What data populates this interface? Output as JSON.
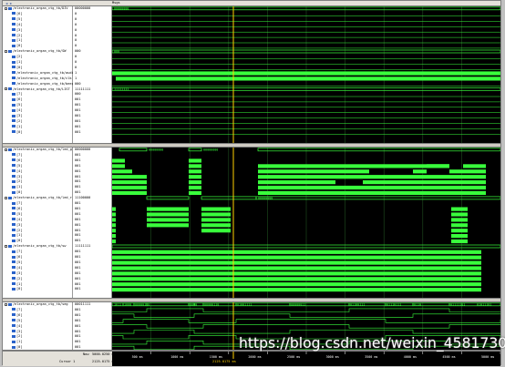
{
  "toolbar": {
    "arrows": "◄ ►",
    "msgs_header": "Msgs"
  },
  "colors": {
    "wave": "#39ff3c",
    "grid": "#1f4f1f",
    "cursor": "#ffd000",
    "background": "#000000"
  },
  "panel1": {
    "signals": [
      {
        "name": "/electronic_organ_ctg_tb/DIV",
        "value": "00000000",
        "group": true
      },
      {
        "name": "[6]",
        "value": "0"
      },
      {
        "name": "[5]",
        "value": "0"
      },
      {
        "name": "[4]",
        "value": "0"
      },
      {
        "name": "[3]",
        "value": "0"
      },
      {
        "name": "[2]",
        "value": "0"
      },
      {
        "name": "[1]",
        "value": "0"
      },
      {
        "name": "[0]",
        "value": "0"
      },
      {
        "name": "/electronic_organ_ctg_tb/SW",
        "value": "000",
        "group": true
      },
      {
        "name": "[2]",
        "value": "0"
      },
      {
        "name": "[1]",
        "value": "0"
      },
      {
        "name": "[0]",
        "value": "0"
      },
      {
        "name": "/electronic_organ_ctg_tb/audio_sw",
        "value": "1"
      },
      {
        "name": "/electronic_organ_ctg_tb/clk",
        "value": "1"
      },
      {
        "name": "/electronic_organ_ctg_tb/beep",
        "value": "000"
      },
      {
        "name": "/electronic_organ_ctg_tb/LIST",
        "value": "11111111",
        "group": true
      },
      {
        "name": "[7]",
        "value": "000"
      },
      {
        "name": "[6]",
        "value": "001"
      },
      {
        "name": "[5]",
        "value": "001"
      },
      {
        "name": "[4]",
        "value": "001"
      },
      {
        "name": "[3]",
        "value": "001"
      },
      {
        "name": "[2]",
        "value": "001"
      },
      {
        "name": "[1]",
        "value": "001"
      },
      {
        "name": "[0]",
        "value": "001"
      }
    ],
    "bus_labels": [
      "00000000",
      "000",
      "11111111"
    ]
  },
  "panel2": {
    "groups": [
      {
        "name": "/electronic_organ_ctg_tb/led_g",
        "value": "00000000",
        "children": [
          "[7]",
          "[6]",
          "[5]",
          "[4]",
          "[3]",
          "[2]",
          "[1]",
          "[0]"
        ],
        "child_values": [
          "001",
          "001",
          "001",
          "001",
          "001",
          "001",
          "001",
          "001"
        ],
        "bus_labels": [
          "00000000",
          "00000000"
        ]
      },
      {
        "name": "/electronic_organ_ctg_tb/led_r",
        "value": "11100000",
        "children": [
          "[7]",
          "[6]",
          "[5]",
          "[4]",
          "[3]",
          "[2]",
          "[1]",
          "[0]"
        ],
        "child_values": [
          "001",
          "001",
          "001",
          "001",
          "001",
          "001",
          "001",
          "001"
        ],
        "bus_labels": [
          "00000000"
        ]
      },
      {
        "name": "/electronic_organ_ctg_tb/sw",
        "value": "11111111",
        "children": [
          "[7]",
          "[6]",
          "[5]",
          "[4]",
          "[3]",
          "[2]",
          "[1]",
          "[0]"
        ],
        "child_values": [
          "001",
          "001",
          "001",
          "001",
          "001",
          "001",
          "001",
          "001"
        ],
        "bus_labels": []
      }
    ]
  },
  "panel3": {
    "group": {
      "name": "/electronic_organ_ctg_tb/seg",
      "value": "00011111"
    },
    "children": [
      "[7]",
      "[6]",
      "[5]",
      "[4]",
      "[3]",
      "[2]",
      "[1]",
      "[0]"
    ],
    "child_values": [
      "001",
      "001",
      "001",
      "001",
      "001",
      "001",
      "001",
      "001"
    ],
    "bus_labels": [
      "1011",
      "1000",
      "00000110",
      "0000",
      "00000110",
      "01001111",
      "00000011",
      "01100111",
      "01110111",
      "0110",
      "01111101",
      "01011101"
    ]
  },
  "footer": {
    "now_label": "Now",
    "now_value": "5000.0250 ms",
    "cursor_label": "Cursor 1",
    "cursor_value": "2125.0175 ms",
    "cursor_readout": "2125.0175 ms",
    "ruler_ticks": [
      "500 ms",
      "1000 ms",
      "1500 ms",
      "2000 ms",
      "2500 ms",
      "3000 ms",
      "3500 ms",
      "4000 ms",
      "4500 ms",
      "5000 ms"
    ]
  },
  "watermark": "https://blog.csdn.net/weixin_45817309"
}
